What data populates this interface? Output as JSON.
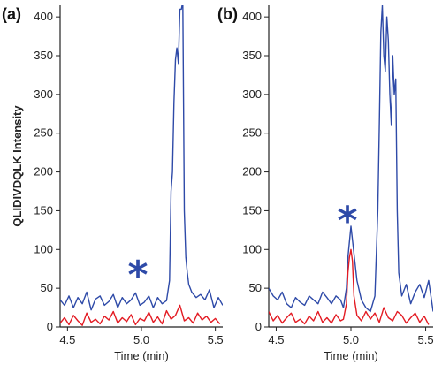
{
  "colors": {
    "blue_trace": "#2e4aa8",
    "red_trace": "#e31b23",
    "axis": "#222222",
    "star": "#2e4aa8"
  },
  "chart_data": [
    {
      "type": "line",
      "panel_label": "(a)",
      "xlabel": "Time (min)",
      "ylabel": "QLIDIVDQLK Intensity",
      "xlim": [
        4.45,
        5.55
      ],
      "ylim": [
        0,
        415
      ],
      "xticks": [
        "4.5",
        "5.0",
        "5.5"
      ],
      "yticks": [
        "0",
        "50",
        "100",
        "150",
        "200",
        "250",
        "300",
        "350",
        "400"
      ],
      "annotation": {
        "text": "*",
        "x": 5.0,
        "y": 80
      },
      "series": [
        {
          "color": "#2e4aa8",
          "x": [
            4.45,
            4.48,
            4.51,
            4.54,
            4.57,
            4.6,
            4.63,
            4.66,
            4.69,
            4.72,
            4.75,
            4.78,
            4.81,
            4.84,
            4.87,
            4.9,
            4.93,
            4.96,
            4.99,
            5.02,
            5.05,
            5.08,
            5.11,
            5.14,
            5.17,
            5.19,
            5.2,
            5.21,
            5.22,
            5.23,
            5.24,
            5.25,
            5.26,
            5.27,
            5.28,
            5.29,
            5.3,
            5.31,
            5.32,
            5.34,
            5.37,
            5.4,
            5.43,
            5.46,
            5.49,
            5.52,
            5.55
          ],
          "values": [
            35,
            28,
            40,
            25,
            38,
            30,
            45,
            22,
            36,
            40,
            28,
            33,
            42,
            25,
            38,
            30,
            35,
            44,
            28,
            32,
            40,
            25,
            38,
            30,
            34,
            60,
            175,
            200,
            290,
            345,
            360,
            340,
            410,
            410,
            420,
            150,
            90,
            70,
            55,
            45,
            38,
            42,
            35,
            48,
            25,
            38,
            28
          ]
        },
        {
          "color": "#e31b23",
          "x": [
            4.45,
            4.48,
            4.51,
            4.54,
            4.57,
            4.6,
            4.63,
            4.66,
            4.69,
            4.72,
            4.75,
            4.78,
            4.81,
            4.84,
            4.87,
            4.9,
            4.93,
            4.96,
            4.99,
            5.02,
            5.05,
            5.08,
            5.11,
            5.14,
            5.17,
            5.2,
            5.23,
            5.26,
            5.29,
            5.32,
            5.35,
            5.38,
            5.41,
            5.44,
            5.47,
            5.5,
            5.53
          ],
          "values": [
            5,
            12,
            3,
            15,
            8,
            2,
            18,
            6,
            10,
            4,
            14,
            9,
            20,
            5,
            12,
            7,
            16,
            3,
            11,
            8,
            19,
            6,
            13,
            4,
            21,
            10,
            15,
            28,
            8,
            12,
            5,
            18,
            9,
            14,
            6,
            11,
            4
          ]
        }
      ]
    },
    {
      "type": "line",
      "panel_label": "(b)",
      "xlabel": "Time (min)",
      "ylabel": "",
      "xlim": [
        4.45,
        5.55
      ],
      "ylim": [
        0,
        415
      ],
      "xticks": [
        "4.5",
        "5.0",
        "5.5"
      ],
      "yticks": [
        "0",
        "50",
        "100",
        "150",
        "200",
        "250",
        "300",
        "350",
        "400"
      ],
      "annotation": {
        "text": "*",
        "x": 5.0,
        "y": 150
      },
      "series": [
        {
          "color": "#2e4aa8",
          "x": [
            4.45,
            4.48,
            4.51,
            4.54,
            4.57,
            4.6,
            4.63,
            4.66,
            4.69,
            4.72,
            4.75,
            4.78,
            4.81,
            4.84,
            4.87,
            4.9,
            4.93,
            4.95,
            4.97,
            4.98,
            4.99,
            5.0,
            5.02,
            5.04,
            5.07,
            5.1,
            5.13,
            5.16,
            5.18,
            5.19,
            5.2,
            5.21,
            5.22,
            5.23,
            5.24,
            5.25,
            5.26,
            5.27,
            5.28,
            5.29,
            5.3,
            5.31,
            5.32,
            5.34,
            5.37,
            5.4,
            5.43,
            5.46,
            5.49,
            5.52,
            5.55
          ],
          "values": [
            50,
            40,
            35,
            45,
            30,
            25,
            38,
            32,
            28,
            40,
            35,
            30,
            45,
            38,
            30,
            40,
            35,
            25,
            50,
            90,
            110,
            130,
            95,
            60,
            35,
            25,
            20,
            40,
            150,
            260,
            380,
            415,
            350,
            330,
            400,
            370,
            300,
            260,
            350,
            300,
            320,
            150,
            70,
            40,
            55,
            30,
            45,
            55,
            38,
            60,
            20
          ]
        },
        {
          "color": "#e31b23",
          "x": [
            4.45,
            4.48,
            4.51,
            4.54,
            4.57,
            4.6,
            4.63,
            4.66,
            4.69,
            4.72,
            4.75,
            4.78,
            4.81,
            4.84,
            4.87,
            4.9,
            4.93,
            4.95,
            4.97,
            4.98,
            4.99,
            5.0,
            5.01,
            5.02,
            5.04,
            5.07,
            5.1,
            5.13,
            5.16,
            5.19,
            5.22,
            5.25,
            5.28,
            5.31,
            5.34,
            5.37,
            5.4,
            5.43,
            5.46,
            5.49,
            5.52
          ],
          "values": [
            20,
            8,
            15,
            5,
            12,
            18,
            6,
            10,
            4,
            14,
            8,
            20,
            6,
            12,
            5,
            16,
            8,
            10,
            30,
            70,
            90,
            100,
            85,
            40,
            15,
            8,
            20,
            10,
            18,
            6,
            25,
            12,
            8,
            20,
            15,
            5,
            12,
            18,
            6,
            14,
            3
          ]
        }
      ]
    }
  ]
}
